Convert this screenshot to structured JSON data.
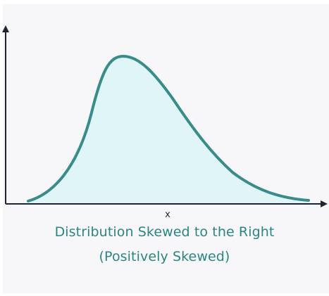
{
  "diagram": {
    "x_axis_label": "x",
    "caption_line1": "Distribution Skewed to the Right",
    "caption_line2": "(Positively Skewed)",
    "colors": {
      "panel_background": "#f7f7f9",
      "axis": "#1f2433",
      "curve_stroke": "#3a8c8a",
      "curve_fill": "#dff5f7",
      "caption": "#2b8583"
    }
  }
}
